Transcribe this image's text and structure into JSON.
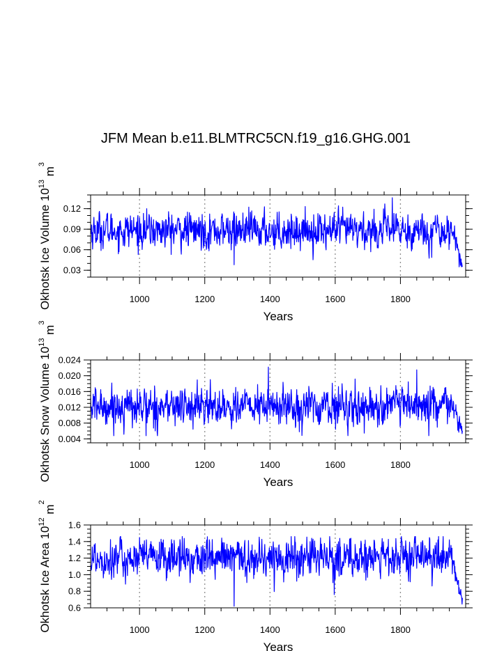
{
  "chart_data": {
    "title": "JFM Mean b.e11.BLMTRC5CN.f19_g16.GHG.001",
    "type": "line",
    "line_color": "#0000ff",
    "xlim": [
      850,
      2000
    ],
    "xticks": [
      1000,
      1200,
      1400,
      1600,
      1800
    ],
    "xtick_labels": [
      "1000",
      "1200",
      "1400",
      "1600",
      "1800"
    ],
    "grid": "dashed vertical lines at x ticks",
    "panels": [
      {
        "id": "ice-volume",
        "xlabel": "Years",
        "ylabel": "Okhotsk Ice Volume 10",
        "ylabel_exponent": "13",
        "ylabel_unit": " m",
        "ylabel_unit_exponent": "3",
        "ylim": [
          0.02,
          0.14
        ],
        "yticks": [
          0.03,
          0.06,
          0.09,
          0.12
        ],
        "ytick_labels": [
          "0.03",
          "0.06",
          "0.09",
          "0.12"
        ],
        "y_minor_step": 0.01,
        "series": {
          "mean": 0.088,
          "spread": 0.013,
          "min": 0.035,
          "max": 0.136,
          "trend_start": 1960,
          "trend_end_value": 0.038,
          "extremes": [
            [
              1290,
              0.038
            ],
            [
              1775,
              0.136
            ],
            [
              1980,
              0.035
            ]
          ]
        }
      },
      {
        "id": "snow-volume",
        "xlabel": "Years",
        "ylabel": "Okhotsk Snow Volume 10",
        "ylabel_exponent": "13",
        "ylabel_unit": " m",
        "ylabel_unit_exponent": "3",
        "ylim": [
          0.003,
          0.024
        ],
        "yticks": [
          0.004,
          0.008,
          0.012,
          0.016,
          0.02,
          0.024
        ],
        "ytick_labels": [
          "0.004",
          "0.008",
          "0.012",
          "0.016",
          "0.020",
          "0.024"
        ],
        "y_minor_step": 0.001,
        "series": {
          "mean": 0.0122,
          "spread": 0.0024,
          "min": 0.0048,
          "max": 0.0222,
          "trend_start": 1960,
          "trend_end_value": 0.0058,
          "extremes": [
            [
              1020,
              0.0048
            ],
            [
              1395,
              0.0222
            ],
            [
              1850,
              0.0215
            ]
          ]
        }
      },
      {
        "id": "ice-area",
        "xlabel": "Years",
        "ylabel": "Okhotsk Ice Area 10",
        "ylabel_exponent": "12",
        "ylabel_unit": " m",
        "ylabel_unit_exponent": "2",
        "ylim": [
          0.6,
          1.6
        ],
        "yticks": [
          0.6,
          0.8,
          1.0,
          1.2,
          1.4,
          1.6
        ],
        "ytick_labels": [
          "0.6",
          "0.8",
          "1.0",
          "1.2",
          "1.4",
          "1.6"
        ],
        "y_minor_step": 0.05,
        "series": {
          "mean": 1.2,
          "spread": 0.12,
          "min": 0.62,
          "max": 1.46,
          "trend_start": 1960,
          "trend_end_value": 0.65,
          "extremes": [
            [
              1290,
              0.62
            ],
            [
              1465,
              1.46
            ],
            [
              1597,
              0.76
            ]
          ]
        }
      }
    ]
  }
}
